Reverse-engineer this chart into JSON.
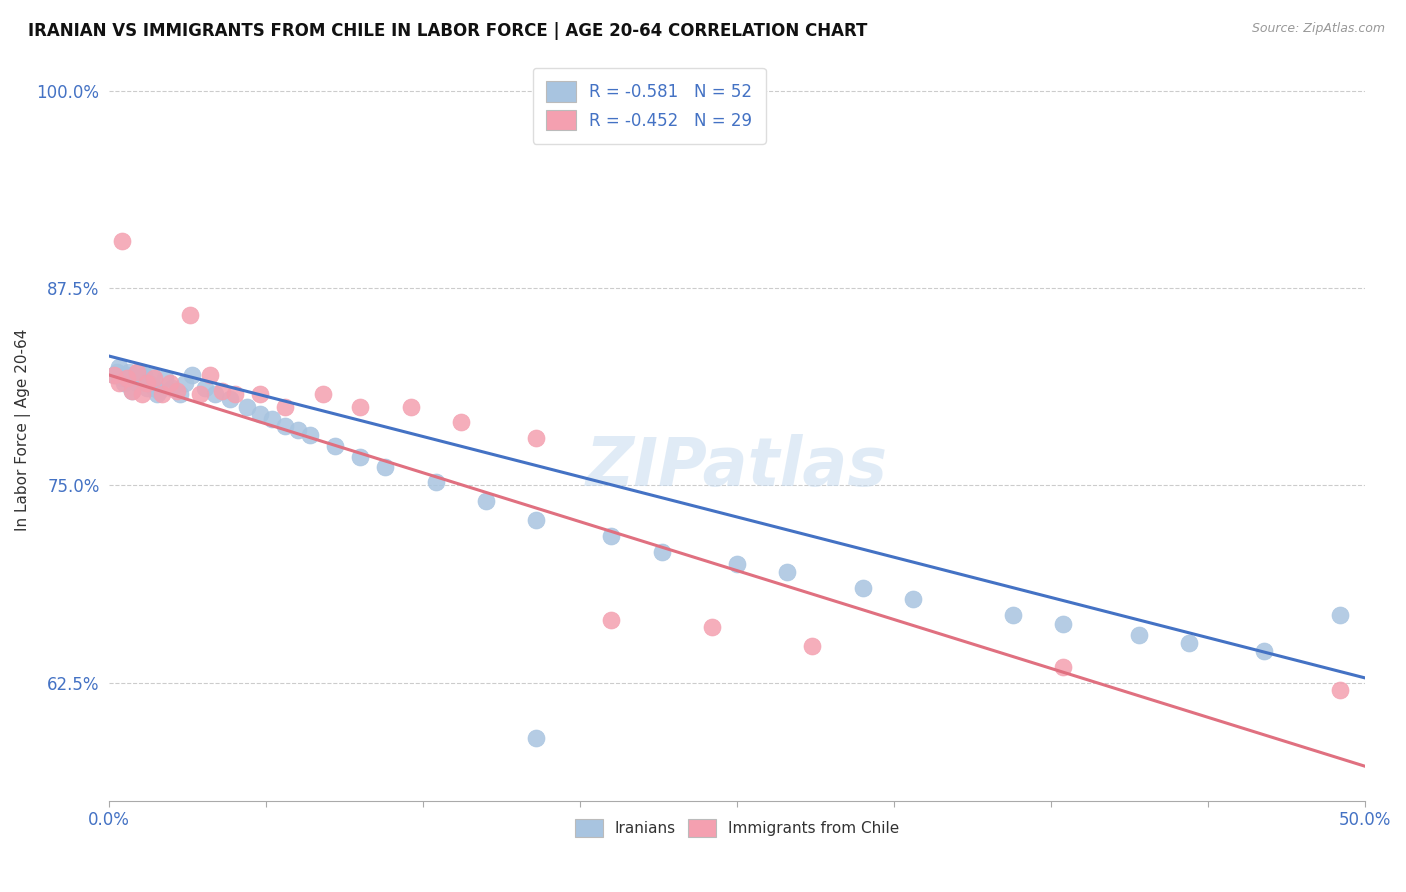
{
  "title": "IRANIAN VS IMMIGRANTS FROM CHILE IN LABOR FORCE | AGE 20-64 CORRELATION CHART",
  "source": "Source: ZipAtlas.com",
  "ylabel": "In Labor Force | Age 20-64",
  "xlim": [
    0.0,
    0.5
  ],
  "ylim": [
    0.55,
    1.02
  ],
  "yticks": [
    0.625,
    0.75,
    0.875,
    1.0
  ],
  "ytick_labels": [
    "62.5%",
    "75.0%",
    "87.5%",
    "100.0%"
  ],
  "xticks": [
    0.0,
    0.0625,
    0.125,
    0.1875,
    0.25,
    0.3125,
    0.375,
    0.4375,
    0.5
  ],
  "xtick_labels": [
    "0.0%",
    "",
    "",
    "",
    "",
    "",
    "",
    "",
    "50.0%"
  ],
  "legend_R1": "-0.581",
  "legend_N1": "52",
  "legend_R2": "-0.452",
  "legend_N2": "29",
  "blue_color": "#a8c4e0",
  "pink_color": "#f4a0b0",
  "line_blue": "#4472c4",
  "line_pink": "#e07080",
  "watermark": "ZIPatlas",
  "blue_line_x0": 0.0,
  "blue_line_y0": 0.832,
  "blue_line_x1": 0.5,
  "blue_line_y1": 0.628,
  "pink_line_x0": 0.0,
  "pink_line_y0": 0.82,
  "pink_line_x1": 0.5,
  "pink_line_y1": 0.572,
  "iranians_x": [
    0.002,
    0.003,
    0.004,
    0.005,
    0.006,
    0.007,
    0.008,
    0.009,
    0.01,
    0.011,
    0.012,
    0.013,
    0.014,
    0.015,
    0.016,
    0.017,
    0.018,
    0.019,
    0.02,
    0.022,
    0.025,
    0.028,
    0.03,
    0.033,
    0.038,
    0.042,
    0.048,
    0.055,
    0.06,
    0.065,
    0.07,
    0.075,
    0.08,
    0.09,
    0.1,
    0.11,
    0.13,
    0.15,
    0.17,
    0.2,
    0.22,
    0.25,
    0.27,
    0.3,
    0.32,
    0.36,
    0.38,
    0.41,
    0.43,
    0.46,
    0.49,
    0.17
  ],
  "iranians_y": [
    0.82,
    0.822,
    0.825,
    0.818,
    0.815,
    0.82,
    0.822,
    0.81,
    0.818,
    0.815,
    0.822,
    0.818,
    0.82,
    0.812,
    0.815,
    0.82,
    0.812,
    0.808,
    0.81,
    0.818,
    0.812,
    0.808,
    0.815,
    0.82,
    0.812,
    0.808,
    0.805,
    0.8,
    0.795,
    0.792,
    0.788,
    0.785,
    0.782,
    0.775,
    0.768,
    0.762,
    0.752,
    0.74,
    0.728,
    0.718,
    0.708,
    0.7,
    0.695,
    0.685,
    0.678,
    0.668,
    0.662,
    0.655,
    0.65,
    0.645,
    0.668,
    0.59
  ],
  "chile_x": [
    0.002,
    0.004,
    0.005,
    0.007,
    0.009,
    0.011,
    0.013,
    0.015,
    0.018,
    0.021,
    0.024,
    0.027,
    0.032,
    0.036,
    0.04,
    0.045,
    0.05,
    0.06,
    0.07,
    0.085,
    0.1,
    0.12,
    0.14,
    0.17,
    0.2,
    0.24,
    0.28,
    0.38,
    0.49
  ],
  "chile_y": [
    0.82,
    0.815,
    0.905,
    0.818,
    0.81,
    0.822,
    0.808,
    0.815,
    0.818,
    0.808,
    0.815,
    0.81,
    0.858,
    0.808,
    0.82,
    0.81,
    0.808,
    0.808,
    0.8,
    0.808,
    0.8,
    0.8,
    0.79,
    0.78,
    0.665,
    0.66,
    0.648,
    0.635,
    0.62
  ]
}
